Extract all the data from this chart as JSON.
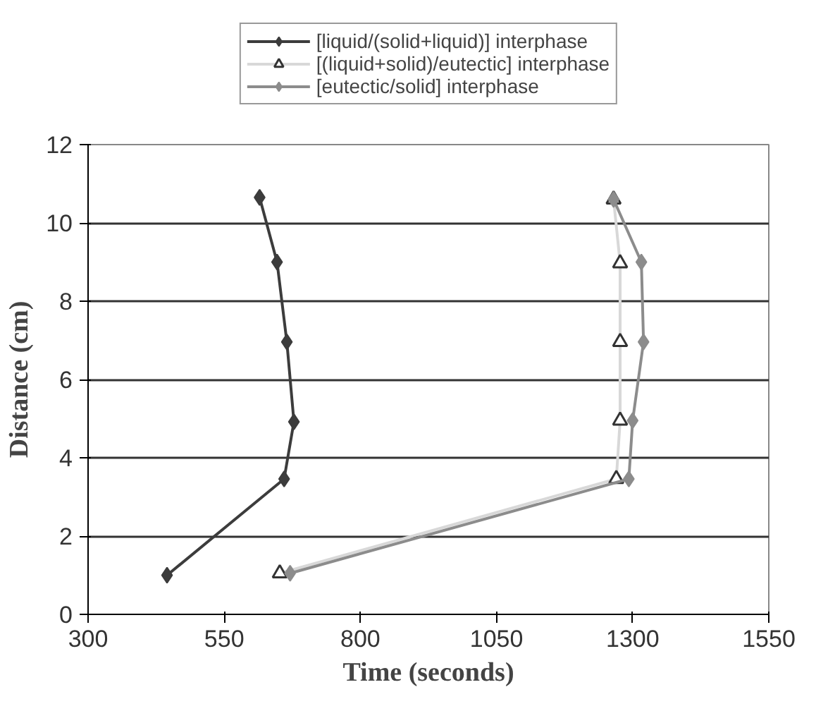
{
  "chart_data": {
    "type": "line",
    "xlabel": "Time (seconds)",
    "ylabel": "Distance (cm)",
    "xlim": [
      300,
      1550
    ],
    "xticks": [
      300,
      550,
      800,
      1050,
      1300,
      1550
    ],
    "ylim": [
      0,
      12
    ],
    "yticks": [
      0,
      2,
      4,
      6,
      8,
      10,
      12
    ],
    "grid": "y",
    "legend": "top",
    "series": [
      {
        "name": "[liquid/(solid+liquid)] interphase",
        "color": "#3c3c3c",
        "marker": "diamond",
        "x": [
          445,
          660,
          678,
          665,
          647,
          615
        ],
        "values": [
          1,
          3.46,
          4.92,
          6.96,
          9.0,
          10.65
        ]
      },
      {
        "name": "[(liquid+solid)/eutectic] interphase",
        "color": "#d8d8d8",
        "marker": "triangle",
        "x": [
          652,
          1270,
          1277,
          1277,
          1277,
          1265
        ],
        "values": [
          1.05,
          3.46,
          4.95,
          6.96,
          8.97,
          10.6
        ]
      },
      {
        "name": "[eutectic/solid] interphase",
        "color": "#8c8c8c",
        "marker": "diamond",
        "x": [
          671,
          1293,
          1300,
          1320,
          1316,
          1265
        ],
        "values": [
          1.05,
          3.46,
          4.95,
          6.96,
          9.0,
          10.6
        ]
      }
    ]
  }
}
